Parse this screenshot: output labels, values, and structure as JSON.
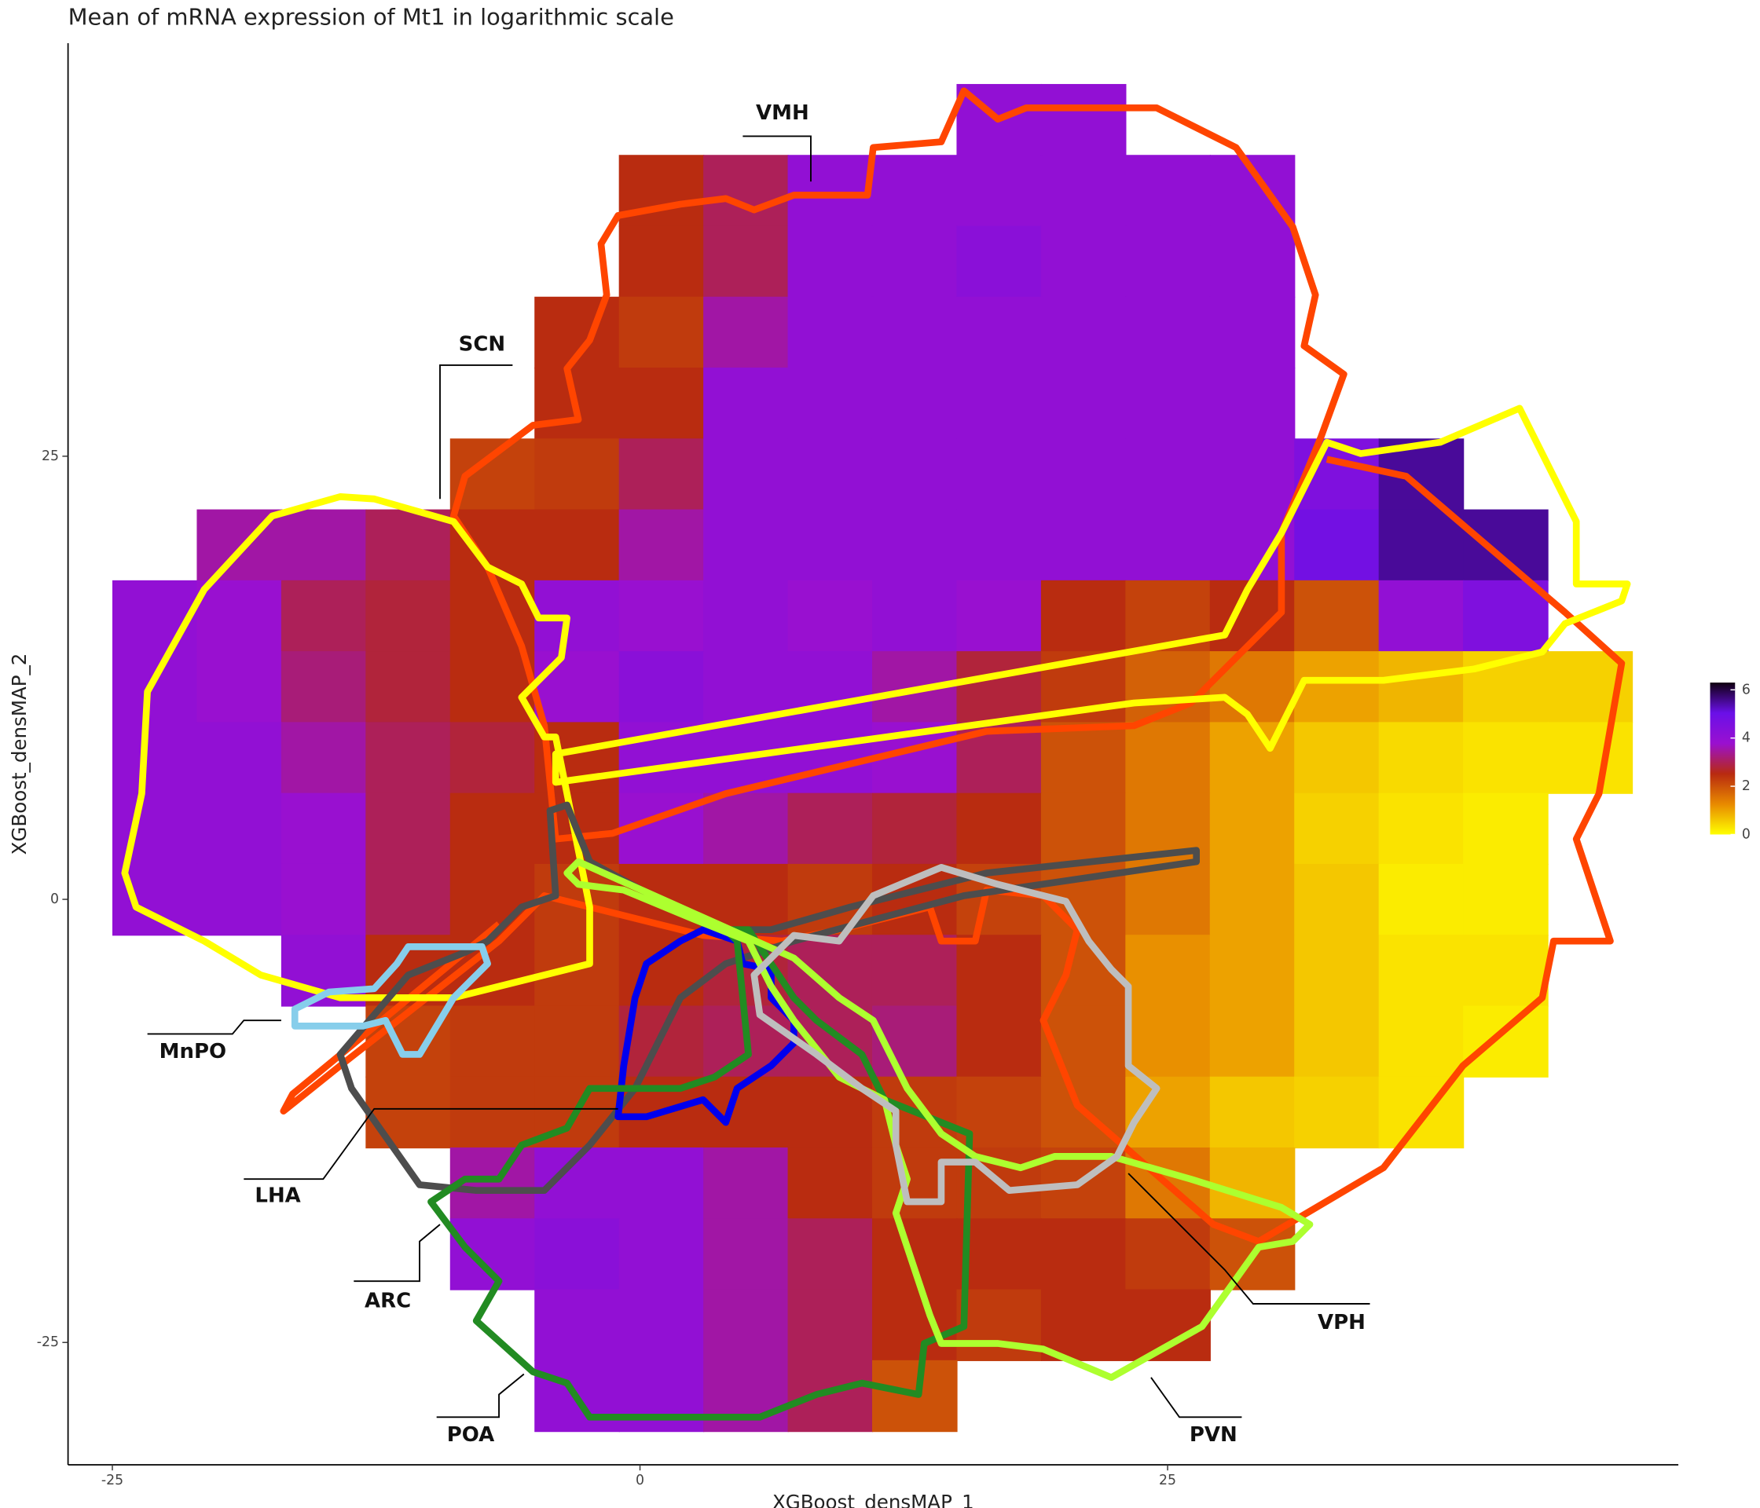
{
  "chart_data": {
    "type": "hexbin",
    "title": "Mean of mRNA expression of Mt1 in logarithmic scale",
    "x_label": "XGBoost_densMAP_1",
    "y_label": "XGBoost_densMAP_2",
    "xlim": [
      -27.1,
      49.2
    ],
    "ylim": [
      -31.9,
      48.3
    ],
    "xticks": [
      -25,
      0,
      25
    ],
    "yticks": [
      -25,
      0,
      25
    ],
    "clim": [
      0,
      6.3
    ],
    "colorbar_ticks": [
      0,
      2,
      4,
      6
    ],
    "colors": [
      "#ffff00",
      "#e88a00",
      "#b82a10",
      "#9a10d0",
      "#6a10e8",
      "#100010"
    ],
    "annotations": [
      "VMH",
      "SCN",
      "MnPO",
      "LHA",
      "ARC",
      "POA",
      "PVN",
      "VPH"
    ],
    "x": [
      -23,
      -19,
      -15,
      -11,
      -7,
      -3,
      1,
      5,
      9,
      13,
      17,
      21,
      25,
      29,
      33,
      37,
      41,
      45
    ],
    "y": [
      44,
      40,
      36,
      32,
      28,
      24,
      20,
      16,
      12,
      8,
      4,
      0,
      -4,
      -8,
      -12,
      -16,
      -20,
      -24,
      -28
    ],
    "values": [
      [
        null,
        null,
        null,
        null,
        null,
        null,
        null,
        null,
        null,
        null,
        4,
        4,
        null,
        null,
        null,
        null,
        null,
        null
      ],
      [
        null,
        null,
        null,
        null,
        null,
        null,
        2.5,
        3,
        4,
        4,
        4,
        4,
        4,
        4,
        null,
        null,
        null,
        null
      ],
      [
        null,
        null,
        null,
        null,
        null,
        null,
        2.5,
        3,
        4,
        4,
        4.2,
        4,
        4,
        4,
        null,
        null,
        null,
        null
      ],
      [
        null,
        null,
        null,
        null,
        null,
        2.5,
        2.3,
        3.5,
        4,
        4,
        4,
        4,
        4,
        4,
        null,
        null,
        null,
        null
      ],
      [
        null,
        null,
        null,
        null,
        null,
        2.5,
        2.5,
        4,
        4,
        4,
        4,
        4,
        4,
        4,
        null,
        null,
        null,
        null
      ],
      [
        null,
        null,
        null,
        null,
        2.2,
        2.3,
        3,
        4,
        4,
        4,
        4,
        4,
        4,
        4,
        4.5,
        5.5,
        null,
        null
      ],
      [
        null,
        3.5,
        3.5,
        3,
        2.5,
        2.5,
        3.5,
        4,
        4,
        4,
        4,
        4,
        4,
        4,
        4.8,
        5.5,
        5.5,
        null
      ],
      [
        4,
        3.8,
        3,
        2.8,
        2.5,
        4,
        3.8,
        4,
        3.8,
        4,
        3.8,
        2.5,
        2.2,
        2.5,
        2,
        4,
        4.5,
        null
      ],
      [
        4,
        3.8,
        3.2,
        2.8,
        2.5,
        3.8,
        4.2,
        4,
        4,
        3.5,
        2.8,
        2.3,
        1.8,
        1.5,
        1,
        0.8,
        0.5,
        0.5
      ],
      [
        4,
        4,
        3.5,
        3,
        2.8,
        2.5,
        4,
        4,
        4,
        3.8,
        3,
        2,
        1.5,
        1,
        0.6,
        0.4,
        0.3,
        0.3
      ],
      [
        4,
        4,
        3.8,
        3,
        2.5,
        2.5,
        3.8,
        3.5,
        3,
        2.8,
        2.5,
        2,
        1.5,
        1,
        0.5,
        0.3,
        0.2,
        null
      ],
      [
        4,
        4,
        3.8,
        3,
        2.5,
        2.3,
        2.5,
        2.5,
        2.3,
        2.5,
        2.2,
        2,
        1.5,
        1,
        0.6,
        0.2,
        0.2,
        null
      ],
      [
        null,
        null,
        4,
        2.5,
        2.5,
        2.3,
        2.5,
        2.8,
        3,
        3,
        2.5,
        2,
        1.2,
        1,
        0.6,
        0.3,
        0.3,
        null
      ],
      [
        null,
        null,
        null,
        2.2,
        2.3,
        2.3,
        2.8,
        3,
        3,
        3.2,
        2.5,
        2,
        1.2,
        1,
        0.6,
        0.3,
        0.2,
        null
      ],
      [
        null,
        null,
        null,
        2.2,
        2.3,
        2.3,
        2.5,
        2.5,
        2.5,
        2.3,
        2.2,
        2,
        1,
        0.6,
        0.5,
        0.3,
        null,
        null
      ],
      [
        null,
        null,
        null,
        null,
        3.5,
        4,
        4,
        3.5,
        2.5,
        2.3,
        2.3,
        2.2,
        1.5,
        0.8,
        null,
        null,
        null,
        null
      ],
      [
        null,
        null,
        null,
        null,
        4,
        4.2,
        4,
        3.5,
        3,
        2.5,
        2.5,
        2.5,
        2.3,
        2,
        null,
        null,
        null,
        null
      ],
      [
        null,
        null,
        null,
        null,
        null,
        4,
        4,
        3.5,
        3,
        2.5,
        2.3,
        2.5,
        2.5,
        null,
        null,
        null,
        null,
        null
      ],
      [
        null,
        null,
        null,
        null,
        null,
        4,
        4,
        3.5,
        3,
        2,
        null,
        null,
        null,
        null,
        null,
        null,
        null,
        null
      ]
    ]
  }
}
